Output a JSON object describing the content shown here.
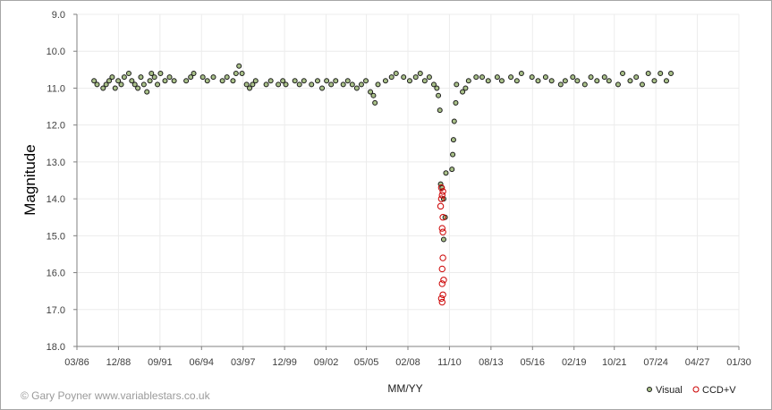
{
  "credit": "© Gary Poyner www.variablestars.co.uk",
  "chart_data": {
    "type": "scatter",
    "title": "",
    "xlabel": "MM/YY",
    "ylabel": "Magnitude",
    "x_ticks": [
      "03/86",
      "12/88",
      "09/91",
      "06/94",
      "03/97",
      "12/99",
      "09/02",
      "05/05",
      "02/08",
      "11/10",
      "08/13",
      "05/16",
      "02/19",
      "10/21",
      "07/24",
      "04/27",
      "01/30"
    ],
    "x_range": [
      "03/86",
      "01/30"
    ],
    "y_ticks": [
      "9.0",
      "10.0",
      "11.0",
      "12.0",
      "13.0",
      "14.0",
      "15.0",
      "16.0",
      "17.0",
      "18.0"
    ],
    "ylim": [
      9.0,
      18.0
    ],
    "y_inverted": true,
    "grid": true,
    "legend_position": "bottom-right",
    "series": [
      {
        "name": "Visual",
        "color": "#a9c089",
        "edge": "#1a1a1a",
        "points": [
          [
            1987.3,
            10.8
          ],
          [
            1987.5,
            10.9
          ],
          [
            1987.9,
            11.0
          ],
          [
            1988.1,
            10.9
          ],
          [
            1988.3,
            10.8
          ],
          [
            1988.5,
            10.7
          ],
          [
            1988.7,
            11.0
          ],
          [
            1988.9,
            10.8
          ],
          [
            1989.1,
            10.9
          ],
          [
            1989.3,
            10.7
          ],
          [
            1989.6,
            10.6
          ],
          [
            1989.8,
            10.8
          ],
          [
            1990.0,
            10.9
          ],
          [
            1990.2,
            11.0
          ],
          [
            1990.4,
            10.7
          ],
          [
            1990.6,
            10.9
          ],
          [
            1990.8,
            11.1
          ],
          [
            1991.0,
            10.8
          ],
          [
            1991.1,
            10.6
          ],
          [
            1991.3,
            10.7
          ],
          [
            1991.5,
            10.9
          ],
          [
            1991.7,
            10.6
          ],
          [
            1992.0,
            10.8
          ],
          [
            1992.3,
            10.7
          ],
          [
            1992.6,
            10.8
          ],
          [
            1993.4,
            10.8
          ],
          [
            1993.7,
            10.7
          ],
          [
            1993.9,
            10.6
          ],
          [
            1994.5,
            10.7
          ],
          [
            1994.8,
            10.8
          ],
          [
            1995.2,
            10.7
          ],
          [
            1995.8,
            10.8
          ],
          [
            1996.1,
            10.7
          ],
          [
            1996.5,
            10.8
          ],
          [
            1996.7,
            10.6
          ],
          [
            1996.9,
            10.4
          ],
          [
            1997.1,
            10.6
          ],
          [
            1997.4,
            10.9
          ],
          [
            1997.6,
            11.0
          ],
          [
            1997.8,
            10.9
          ],
          [
            1998.0,
            10.8
          ],
          [
            1998.7,
            10.9
          ],
          [
            1999.0,
            10.8
          ],
          [
            1999.5,
            10.9
          ],
          [
            1999.8,
            10.8
          ],
          [
            2000.0,
            10.9
          ],
          [
            2000.6,
            10.8
          ],
          [
            2000.9,
            10.9
          ],
          [
            2001.2,
            10.8
          ],
          [
            2001.7,
            10.9
          ],
          [
            2002.1,
            10.8
          ],
          [
            2002.4,
            11.0
          ],
          [
            2002.7,
            10.8
          ],
          [
            2003.0,
            10.9
          ],
          [
            2003.3,
            10.8
          ],
          [
            2003.8,
            10.9
          ],
          [
            2004.1,
            10.8
          ],
          [
            2004.4,
            10.9
          ],
          [
            2004.7,
            11.0
          ],
          [
            2005.0,
            10.9
          ],
          [
            2005.3,
            10.8
          ],
          [
            2005.6,
            11.1
          ],
          [
            2005.8,
            11.2
          ],
          [
            2005.9,
            11.4
          ],
          [
            2006.1,
            10.9
          ],
          [
            2006.6,
            10.8
          ],
          [
            2007.0,
            10.7
          ],
          [
            2007.3,
            10.6
          ],
          [
            2007.8,
            10.7
          ],
          [
            2008.2,
            10.8
          ],
          [
            2008.6,
            10.7
          ],
          [
            2008.9,
            10.6
          ],
          [
            2009.2,
            10.8
          ],
          [
            2009.5,
            10.7
          ],
          [
            2009.8,
            10.9
          ],
          [
            2010.0,
            11.0
          ],
          [
            2010.1,
            11.2
          ],
          [
            2010.2,
            11.6
          ],
          [
            2010.25,
            13.6
          ],
          [
            2010.35,
            13.7
          ],
          [
            2010.45,
            14.0
          ],
          [
            2010.55,
            14.5
          ],
          [
            2010.45,
            15.1
          ],
          [
            2010.6,
            13.3
          ],
          [
            2011.0,
            13.2
          ],
          [
            2011.05,
            12.8
          ],
          [
            2011.1,
            12.4
          ],
          [
            2011.15,
            11.9
          ],
          [
            2011.25,
            11.4
          ],
          [
            2011.3,
            10.9
          ],
          [
            2011.7,
            11.1
          ],
          [
            2011.9,
            11.0
          ],
          [
            2012.1,
            10.8
          ],
          [
            2012.6,
            10.7
          ],
          [
            2013.0,
            10.7
          ],
          [
            2013.4,
            10.8
          ],
          [
            2014.0,
            10.7
          ],
          [
            2014.3,
            10.8
          ],
          [
            2014.9,
            10.7
          ],
          [
            2015.3,
            10.8
          ],
          [
            2015.6,
            10.6
          ],
          [
            2016.3,
            10.7
          ],
          [
            2016.7,
            10.8
          ],
          [
            2017.2,
            10.7
          ],
          [
            2017.6,
            10.8
          ],
          [
            2018.2,
            10.9
          ],
          [
            2018.5,
            10.8
          ],
          [
            2019.0,
            10.7
          ],
          [
            2019.3,
            10.8
          ],
          [
            2019.8,
            10.9
          ],
          [
            2020.2,
            10.7
          ],
          [
            2020.6,
            10.8
          ],
          [
            2021.1,
            10.7
          ],
          [
            2021.4,
            10.8
          ],
          [
            2022.0,
            10.9
          ],
          [
            2022.3,
            10.6
          ],
          [
            2022.8,
            10.8
          ],
          [
            2023.2,
            10.7
          ],
          [
            2023.6,
            10.9
          ],
          [
            2024.0,
            10.6
          ],
          [
            2024.4,
            10.8
          ],
          [
            2024.8,
            10.6
          ],
          [
            2025.2,
            10.8
          ],
          [
            2025.5,
            10.6
          ]
        ]
      },
      {
        "name": "CCD+V",
        "color": "#cc0000",
        "points": [
          [
            2010.3,
            13.7
          ],
          [
            2010.4,
            13.8
          ],
          [
            2010.35,
            13.9
          ],
          [
            2010.3,
            14.0
          ],
          [
            2010.25,
            14.2
          ],
          [
            2010.4,
            14.5
          ],
          [
            2010.35,
            14.8
          ],
          [
            2010.4,
            14.9
          ],
          [
            2010.4,
            15.6
          ],
          [
            2010.35,
            15.9
          ],
          [
            2010.45,
            16.2
          ],
          [
            2010.35,
            16.3
          ],
          [
            2010.4,
            16.6
          ],
          [
            2010.3,
            16.7
          ],
          [
            2010.35,
            16.8
          ]
        ]
      }
    ]
  }
}
